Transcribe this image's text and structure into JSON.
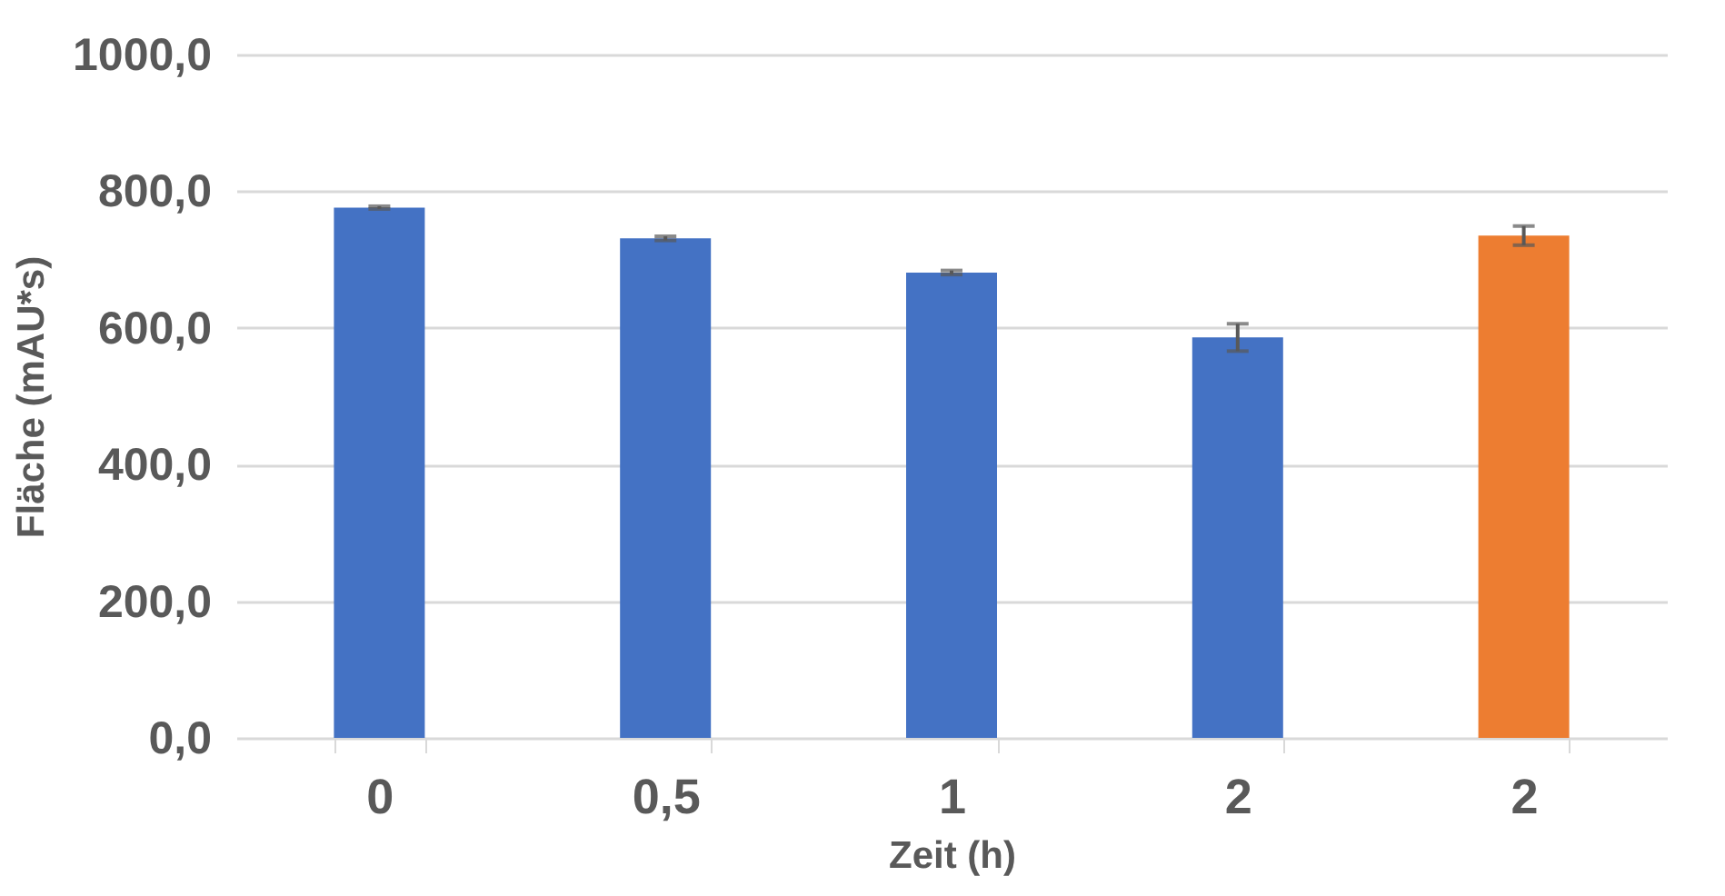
{
  "chart_data": {
    "type": "bar",
    "xlabel": "Zeit (h)",
    "ylabel": "Fläche (mAU*s)",
    "categories": [
      "0",
      "0,5",
      "1",
      "2",
      "2"
    ],
    "values": [
      776,
      731,
      681,
      586,
      735
    ],
    "colors": [
      "#4472c4",
      "#4472c4",
      "#4472c4",
      "#4472c4",
      "#ed7d31"
    ],
    "errors": [
      2,
      3,
      3,
      20,
      14
    ],
    "ylim": [
      0,
      1000
    ],
    "yticks": [
      {
        "value": 0,
        "label": "0,0"
      },
      {
        "value": 200,
        "label": "200,0"
      },
      {
        "value": 400,
        "label": "400,0"
      },
      {
        "value": 600,
        "label": "600,0"
      },
      {
        "value": 800,
        "label": "800,0"
      },
      {
        "value": 1000,
        "label": "1000,0"
      }
    ],
    "grid": "y"
  }
}
